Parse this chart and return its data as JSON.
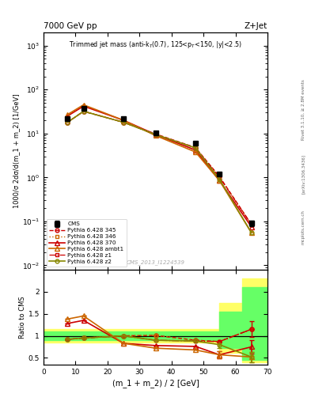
{
  "title_top": "7000 GeV pp",
  "title_right": "Z+Jet",
  "watermark": "CMS_2013_I1224539",
  "ylabel_main": "1000/σ 2dσ/d(m_1 + m_2) [1/GeV]",
  "ylabel_ratio": "Ratio to CMS",
  "xlabel": "(m_1 + m_2) / 2 [GeV]",
  "xlim": [
    0,
    70
  ],
  "ylim_main": [
    0.008,
    2000
  ],
  "ylim_ratio": [
    0.35,
    2.5
  ],
  "x_data": [
    7.5,
    12.5,
    25,
    35,
    47.5,
    55,
    65
  ],
  "cms_y": [
    22,
    38,
    22,
    10.5,
    6.0,
    1.2,
    0.09
  ],
  "cms_yerr": [
    1.5,
    2,
    1.5,
    0.8,
    0.4,
    0.12,
    0.012
  ],
  "mc_345_y": [
    18,
    32,
    18,
    9.8,
    4.8,
    1.05,
    0.085
  ],
  "mc_346_y": [
    18,
    32,
    18,
    9.5,
    4.7,
    1.0,
    0.085
  ],
  "mc_370_y": [
    25,
    42,
    20,
    9.5,
    4.2,
    0.85,
    0.075
  ],
  "mc_ambt1_y": [
    27,
    45,
    20,
    9.0,
    3.8,
    0.85,
    0.055
  ],
  "mc_z1_y": [
    18,
    32,
    18,
    9.5,
    4.7,
    1.0,
    0.085
  ],
  "mc_z2_y": [
    18,
    32,
    18,
    9.5,
    4.7,
    0.9,
    0.055
  ],
  "ratio_345": [
    0.92,
    0.95,
    1.0,
    1.01,
    0.9,
    0.87,
    1.15
  ],
  "ratio_346": [
    0.92,
    0.95,
    1.0,
    1.01,
    0.9,
    0.87,
    1.15
  ],
  "ratio_370": [
    1.28,
    1.35,
    0.83,
    0.78,
    0.76,
    0.57,
    0.75
  ],
  "ratio_ambt1": [
    1.38,
    1.45,
    0.83,
    0.72,
    0.68,
    0.57,
    0.52
  ],
  "ratio_z1": [
    0.92,
    0.95,
    1.0,
    0.9,
    0.88,
    0.87,
    1.15
  ],
  "ratio_z2": [
    0.92,
    0.95,
    1.0,
    0.9,
    0.88,
    0.8,
    0.52
  ],
  "ratio_345_yerr": [
    0,
    0,
    0,
    0,
    0,
    0,
    0.18
  ],
  "ratio_370_yerr": [
    0,
    0,
    0,
    0,
    0,
    0.08,
    0.15
  ],
  "ratio_ambt1_yerr": [
    0,
    0,
    0,
    0,
    0,
    0.08,
    0.12
  ],
  "ratio_z2_yerr": [
    0,
    0,
    0,
    0,
    0,
    0.08,
    0.12
  ],
  "rivet_label": "Rivet 3.1.10, ≥ 2.8M events",
  "arxiv_label": "[arXiv:1306.3436]",
  "mcplots_label": "mcplots.cern.ch"
}
